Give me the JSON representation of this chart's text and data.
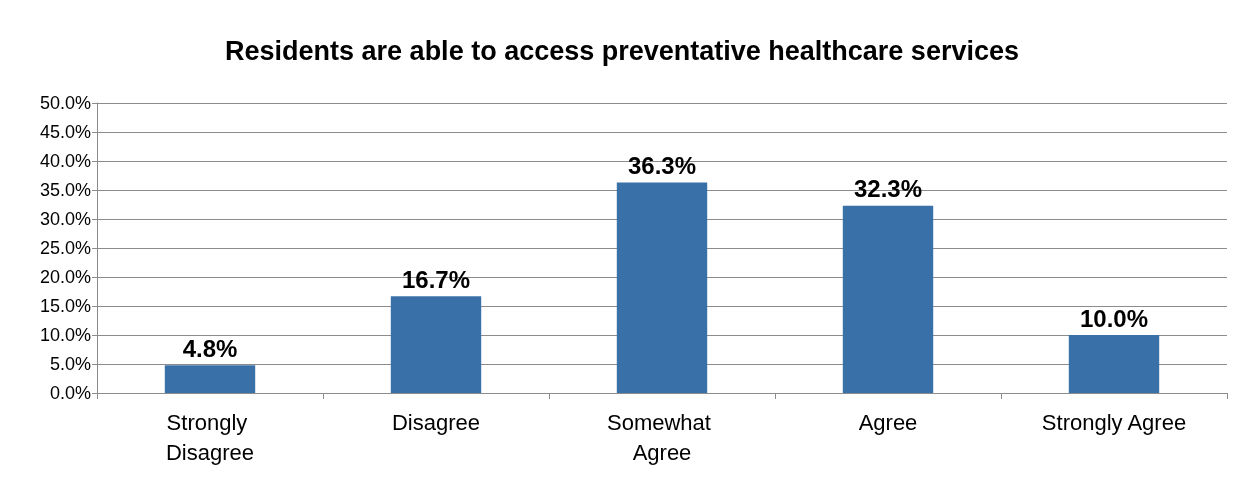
{
  "chart_data": {
    "type": "bar",
    "title": "Residents are able to access preventative healthcare services",
    "categories": [
      "Strongly Disagree",
      "Disagree",
      "Somewhat Agree",
      "Agree",
      "Strongly Agree"
    ],
    "values": [
      4.8,
      16.7,
      36.3,
      32.3,
      10.0
    ],
    "value_labels": [
      "4.8%",
      "16.7%",
      "36.3%",
      "32.3%",
      "10.0%"
    ],
    "color": "#3a70a8",
    "ylim": [
      0,
      50
    ],
    "yticks": [
      {
        "value": 0,
        "label": "0.0%"
      },
      {
        "value": 5,
        "label": "5.0%"
      },
      {
        "value": 10,
        "label": "10.0%"
      },
      {
        "value": 15,
        "label": "15.0%"
      },
      {
        "value": 20,
        "label": "20.0%"
      },
      {
        "value": 25,
        "label": "25.0%"
      },
      {
        "value": 30,
        "label": "30.0%"
      },
      {
        "value": 35,
        "label": "35.0%"
      },
      {
        "value": 40,
        "label": "40.0%"
      },
      {
        "value": 45,
        "label": "45.0%"
      },
      {
        "value": 50,
        "label": "50.0%"
      }
    ],
    "grid": "y"
  }
}
